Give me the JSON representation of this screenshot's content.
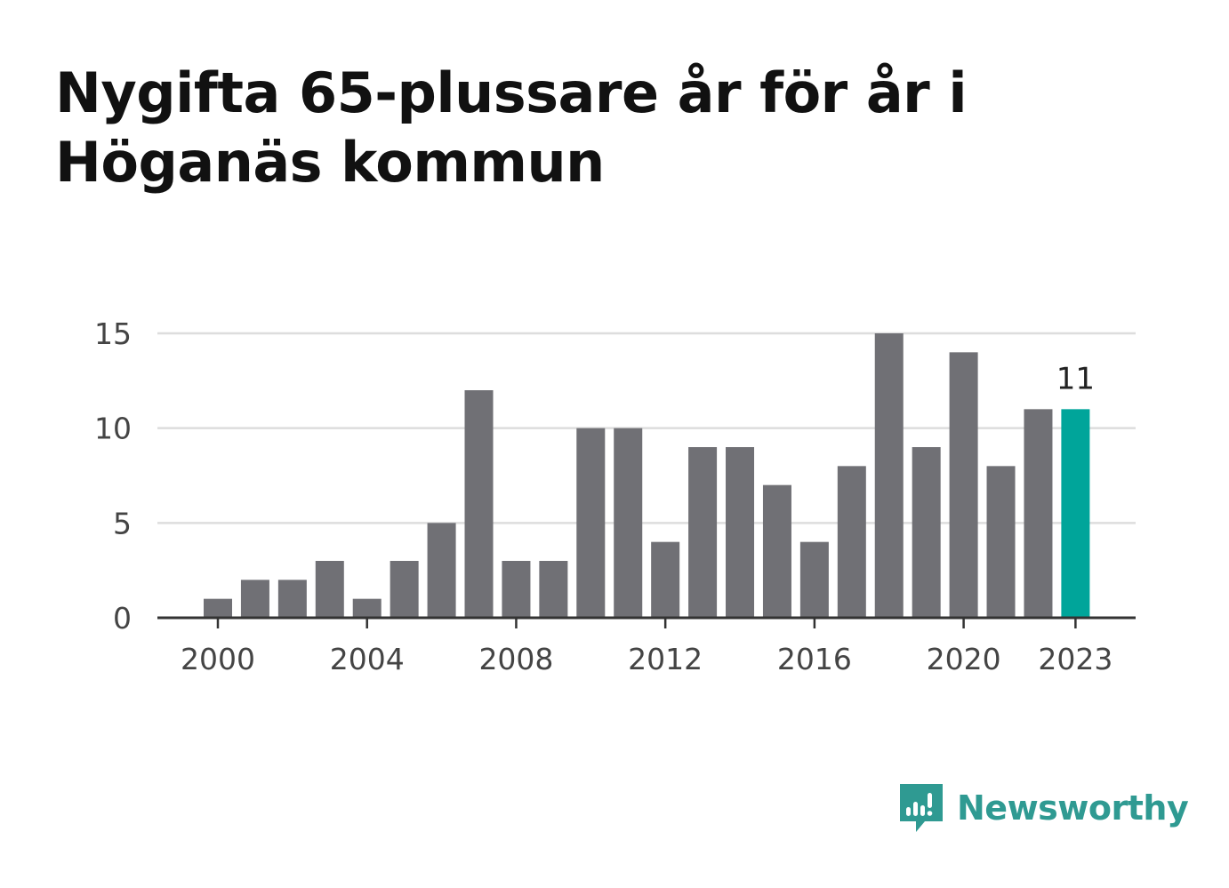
{
  "title": "Nygifta 65-plussare år för år i Höganäs kommun",
  "colors": {
    "bar": "#707075",
    "highlight": "#00a59a",
    "grid": "#dddddd",
    "axis": "#333333",
    "tick_text": "#444444",
    "brand": "#2f9a92"
  },
  "chart_data": {
    "type": "bar",
    "x": [
      2000,
      2001,
      2002,
      2003,
      2004,
      2005,
      2006,
      2007,
      2008,
      2009,
      2010,
      2011,
      2012,
      2013,
      2014,
      2015,
      2016,
      2017,
      2018,
      2019,
      2020,
      2021,
      2022,
      2023
    ],
    "values": [
      1,
      2,
      2,
      3,
      1,
      3,
      5,
      12,
      3,
      3,
      10,
      10,
      4,
      9,
      9,
      7,
      4,
      8,
      15,
      9,
      14,
      8,
      11,
      11
    ],
    "highlight_x": 2023,
    "highlight_label": "11",
    "x_ticks": [
      "2000",
      "2004",
      "2008",
      "2012",
      "2016",
      "2020",
      "2023"
    ],
    "y_ticks": [
      "0",
      "5",
      "10",
      "15"
    ],
    "ylim": [
      0,
      15
    ],
    "grid": true,
    "xlabel": "",
    "ylabel": ""
  },
  "logo": {
    "text": "Newsworthy",
    "icon": "newsworthy-bar-chart-icon"
  }
}
